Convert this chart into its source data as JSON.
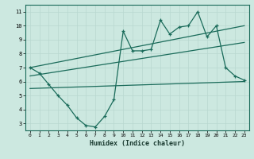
{
  "xlabel": "Humidex (Indice chaleur)",
  "xlim": [
    -0.5,
    23.5
  ],
  "ylim": [
    2.5,
    11.5
  ],
  "xticks": [
    0,
    1,
    2,
    3,
    4,
    5,
    6,
    7,
    8,
    9,
    10,
    11,
    12,
    13,
    14,
    15,
    16,
    17,
    18,
    19,
    20,
    21,
    22,
    23
  ],
  "yticks": [
    3,
    4,
    5,
    6,
    7,
    8,
    9,
    10,
    11
  ],
  "bg_color": "#cce8e0",
  "line_color": "#1a6b5a",
  "main_line_x": [
    0,
    1,
    2,
    3,
    4,
    5,
    6,
    7,
    8,
    9,
    10,
    11,
    12,
    13,
    14,
    15,
    16,
    17,
    18,
    19,
    20,
    21,
    22,
    23
  ],
  "main_line_y": [
    7.0,
    6.6,
    5.8,
    5.0,
    4.3,
    3.4,
    2.85,
    2.75,
    3.5,
    4.7,
    9.6,
    8.2,
    8.2,
    8.3,
    10.4,
    9.4,
    9.9,
    10.0,
    11.0,
    9.2,
    10.0,
    7.0,
    6.4,
    6.1
  ],
  "upper_line_x": [
    0,
    23
  ],
  "upper_line_y": [
    7.0,
    10.0
  ],
  "lower_line_x": [
    0,
    23
  ],
  "lower_line_y": [
    5.5,
    6.0
  ],
  "mid_line_x": [
    0,
    23
  ],
  "mid_line_y": [
    6.4,
    8.8
  ],
  "grid_color": "#b8d8d0"
}
